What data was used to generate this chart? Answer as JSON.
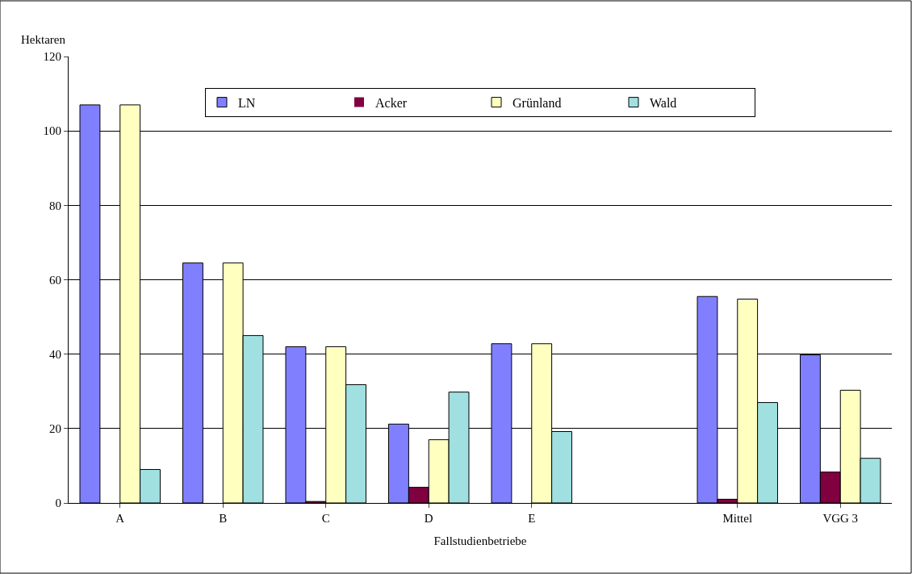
{
  "chart_data": {
    "type": "bar",
    "xlabel": "Fallstudienbetriebe",
    "ylabel": "Hektaren",
    "categories": [
      "A",
      "B",
      "C",
      "D",
      "E",
      null,
      "Mittel",
      "VGG 3"
    ],
    "series": [
      {
        "name": "LN",
        "color": "#8080ff",
        "values": [
          107,
          64.5,
          42,
          21.2,
          42.8,
          null,
          55.5,
          39.8
        ]
      },
      {
        "name": "Acker",
        "color": "#800040",
        "values": [
          0,
          0,
          0.4,
          4.2,
          0,
          null,
          1,
          8.3
        ]
      },
      {
        "name": "Grünland",
        "color": "#ffffc0",
        "values": [
          107,
          64.5,
          42,
          17,
          42.8,
          null,
          54.8,
          30.3
        ]
      },
      {
        "name": "Wald",
        "color": "#a0e0e0",
        "values": [
          9,
          45,
          31.8,
          29.8,
          19.2,
          null,
          27,
          12
        ]
      }
    ],
    "ylim": [
      0,
      120
    ],
    "yticks": [
      0,
      20,
      40,
      60,
      80,
      100,
      120
    ],
    "grid": "y",
    "legend": "top"
  }
}
